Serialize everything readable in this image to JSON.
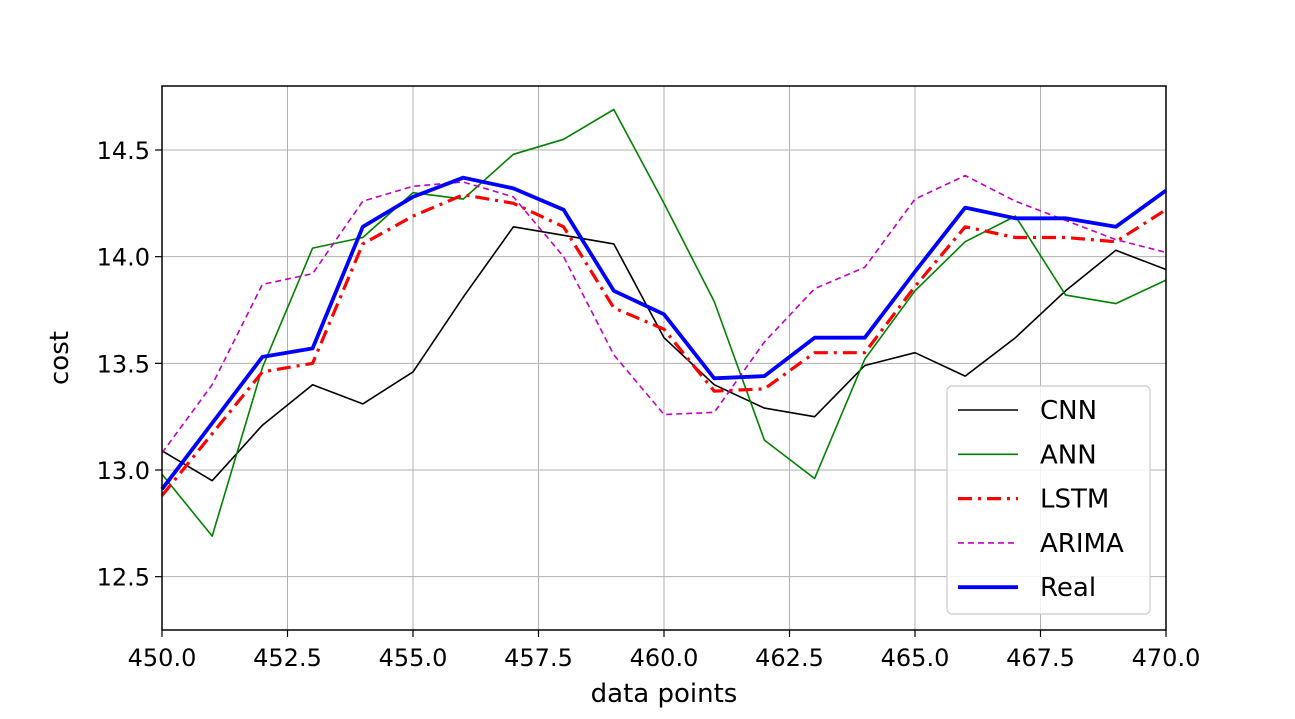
{
  "chart_data": {
    "type": "line",
    "title": "",
    "xlabel": "data points",
    "ylabel": "cost",
    "xlim": [
      450.0,
      470.0
    ],
    "ylim": [
      12.25,
      14.8
    ],
    "xticks": [
      450.0,
      452.5,
      455.0,
      457.5,
      460.0,
      462.5,
      465.0,
      467.5,
      470.0
    ],
    "xtick_labels": [
      "450.0",
      "452.5",
      "455.0",
      "457.5",
      "460.0",
      "462.5",
      "465.0",
      "467.5",
      "470.0"
    ],
    "yticks": [
      12.5,
      13.0,
      13.5,
      14.0,
      14.5
    ],
    "ytick_labels": [
      "12.5",
      "13.0",
      "13.5",
      "14.0",
      "14.5"
    ],
    "grid": true,
    "legend_position": "lower-right",
    "x": [
      450,
      451,
      452,
      453,
      454,
      455,
      456,
      457,
      458,
      459,
      460,
      461,
      462,
      463,
      464,
      465,
      466,
      467,
      468,
      469,
      470
    ],
    "series": [
      {
        "name": "CNN",
        "color": "#000000",
        "dash": "solid",
        "width": "thin",
        "values": [
          13.09,
          12.95,
          13.21,
          13.4,
          13.31,
          13.46,
          13.81,
          14.14,
          14.1,
          14.06,
          13.62,
          13.4,
          13.29,
          13.25,
          13.49,
          13.55,
          13.44,
          13.62,
          13.84,
          14.03,
          13.94
        ]
      },
      {
        "name": "ANN",
        "color": "#008000",
        "dash": "solid",
        "width": "thin",
        "values": [
          12.98,
          12.69,
          13.48,
          14.04,
          14.09,
          14.3,
          14.27,
          14.48,
          14.55,
          14.69,
          14.25,
          13.79,
          13.14,
          12.96,
          13.52,
          13.84,
          14.07,
          14.19,
          13.82,
          13.78,
          13.89
        ]
      },
      {
        "name": "LSTM",
        "color": "#ff0000",
        "dash": "dashdot",
        "width": "thick",
        "values": [
          12.88,
          13.17,
          13.46,
          13.5,
          14.06,
          14.19,
          14.29,
          14.25,
          14.14,
          13.76,
          13.66,
          13.37,
          13.38,
          13.55,
          13.55,
          13.86,
          14.14,
          14.09,
          14.09,
          14.07,
          14.22
        ]
      },
      {
        "name": "ARIMA",
        "color": "#c000c0",
        "dash": "dashed",
        "width": "thin",
        "values": [
          13.08,
          13.4,
          13.87,
          13.92,
          14.26,
          14.33,
          14.35,
          14.28,
          14.0,
          13.54,
          13.26,
          13.27,
          13.6,
          13.85,
          13.95,
          14.27,
          14.38,
          14.26,
          14.17,
          14.08,
          14.02
        ]
      },
      {
        "name": "Real",
        "color": "#0000ff",
        "dash": "solid",
        "width": "thickest",
        "values": [
          12.91,
          13.22,
          13.53,
          13.57,
          14.14,
          14.28,
          14.37,
          14.32,
          14.22,
          13.84,
          13.73,
          13.43,
          13.44,
          13.62,
          13.62,
          13.93,
          14.23,
          14.18,
          14.18,
          14.14,
          14.31
        ]
      }
    ]
  }
}
